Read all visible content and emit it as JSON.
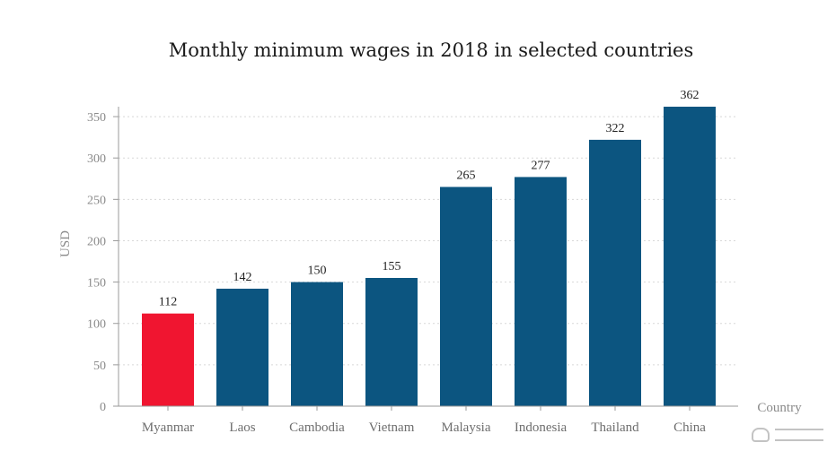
{
  "chart_data": {
    "type": "bar",
    "title": "Monthly minimum wages in 2018 in selected countries",
    "xlabel": "Country",
    "ylabel": "USD",
    "categories": [
      "Myanmar",
      "Laos",
      "Cambodia",
      "Vietnam",
      "Malaysia",
      "Indonesia",
      "Thailand",
      "China"
    ],
    "values": [
      112,
      142,
      150,
      155,
      265,
      277,
      322,
      362
    ],
    "data_labels": [
      "112",
      "142",
      "150",
      "155",
      "265",
      "277",
      "322",
      "362"
    ],
    "ylim": [
      0,
      362
    ],
    "yticks": [
      0,
      50,
      100,
      150,
      200,
      250,
      300,
      350
    ],
    "ytick_labels": [
      "0",
      "50",
      "100",
      "150",
      "200",
      "250",
      "300",
      "350"
    ],
    "grid": true,
    "legend": "none",
    "colors": {
      "highlight": "#f01530",
      "default": "#0c5580",
      "grid": "#d8d8d8",
      "axis": "#9a9a9a"
    },
    "highlight_category": "Myanmar"
  },
  "watermark": {
    "icon": "wechat-logo-icon"
  }
}
